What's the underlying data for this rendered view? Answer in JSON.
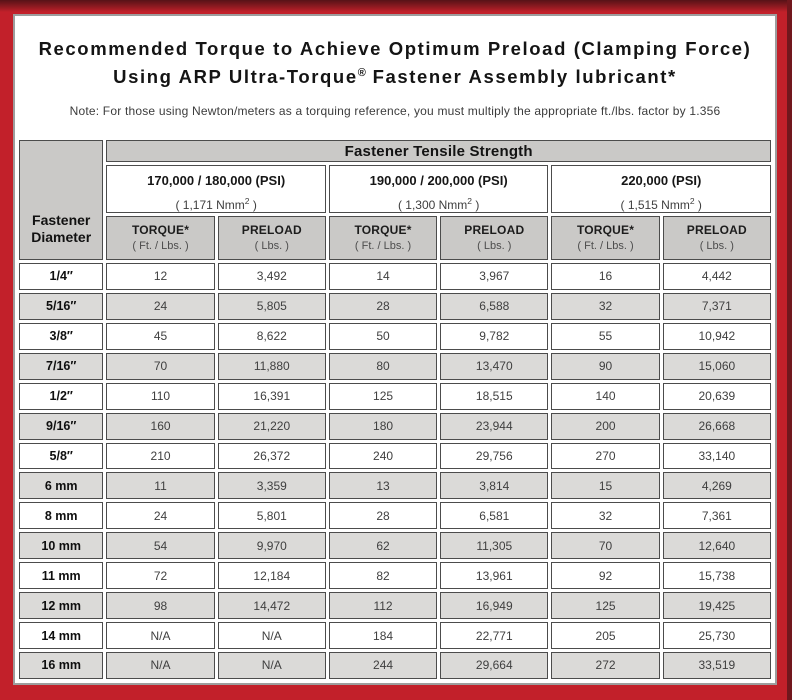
{
  "header": {
    "title_line1": "Recommended Torque to Achieve Optimum Preload (Clamping Force)",
    "title_line2_pre": "Using ARP Ultra-Torque",
    "title_line2_sup": "®",
    "title_line2_post": " Fastener Assembly lubricant*",
    "note": "Note: For those using Newton/meters as a torquing reference, you must multiply the appropriate ft./lbs. factor by 1.356"
  },
  "table": {
    "corner_line1": "Fastener",
    "corner_line2": "Diameter",
    "group_header": "Fastener Tensile Strength",
    "groups": [
      {
        "psi": "170,000 / 180,000 (PSI)",
        "nmm_pre": "( 1,171 Nmm",
        "nmm_sup": "2",
        "nmm_post": " )"
      },
      {
        "psi": "190,000 / 200,000 (PSI)",
        "nmm_pre": "( 1,300 Nmm",
        "nmm_sup": "2",
        "nmm_post": " )"
      },
      {
        "psi": "220,000 (PSI)",
        "nmm_pre": "( 1,515 Nmm",
        "nmm_sup": "2",
        "nmm_post": " )"
      }
    ],
    "col_headers": {
      "torque_label": "TORQUE*",
      "torque_unit": "( Ft. / Lbs. )",
      "preload_label": "PRELOAD",
      "preload_unit": "( Lbs. )"
    },
    "rows": [
      {
        "d": "1/4″",
        "v": [
          "12",
          "3,492",
          "14",
          "3,967",
          "16",
          "4,442"
        ]
      },
      {
        "d": "5/16″",
        "v": [
          "24",
          "5,805",
          "28",
          "6,588",
          "32",
          "7,371"
        ]
      },
      {
        "d": "3/8″",
        "v": [
          "45",
          "8,622",
          "50",
          "9,782",
          "55",
          "10,942"
        ]
      },
      {
        "d": "7/16″",
        "v": [
          "70",
          "11,880",
          "80",
          "13,470",
          "90",
          "15,060"
        ]
      },
      {
        "d": "1/2″",
        "v": [
          "110",
          "16,391",
          "125",
          "18,515",
          "140",
          "20,639"
        ]
      },
      {
        "d": "9/16″",
        "v": [
          "160",
          "21,220",
          "180",
          "23,944",
          "200",
          "26,668"
        ]
      },
      {
        "d": "5/8″",
        "v": [
          "210",
          "26,372",
          "240",
          "29,756",
          "270",
          "33,140"
        ]
      },
      {
        "d": "6 mm",
        "v": [
          "11",
          "3,359",
          "13",
          "3,814",
          "15",
          "4,269"
        ]
      },
      {
        "d": "8 mm",
        "v": [
          "24",
          "5,801",
          "28",
          "6,581",
          "32",
          "7,361"
        ]
      },
      {
        "d": "10 mm",
        "v": [
          "54",
          "9,970",
          "62",
          "11,305",
          "70",
          "12,640"
        ]
      },
      {
        "d": "11 mm",
        "v": [
          "72",
          "12,184",
          "82",
          "13,961",
          "92",
          "15,738"
        ]
      },
      {
        "d": "12 mm",
        "v": [
          "98",
          "14,472",
          "112",
          "16,949",
          "125",
          "19,425"
        ]
      },
      {
        "d": "14 mm",
        "v": [
          "N/A",
          "N/A",
          "184",
          "22,771",
          "205",
          "25,730"
        ]
      },
      {
        "d": "16 mm",
        "v": [
          "N/A",
          "N/A",
          "244",
          "29,664",
          "272",
          "33,519"
        ]
      }
    ],
    "colors": {
      "frame_red": "#c2202a",
      "frame_dark_top": "#571217",
      "frame_dark_right": "#71171d",
      "header_gray": "#cac9c7",
      "row_gray": "#dbdad8",
      "cell_border_gray": "#4c4c4c"
    }
  }
}
